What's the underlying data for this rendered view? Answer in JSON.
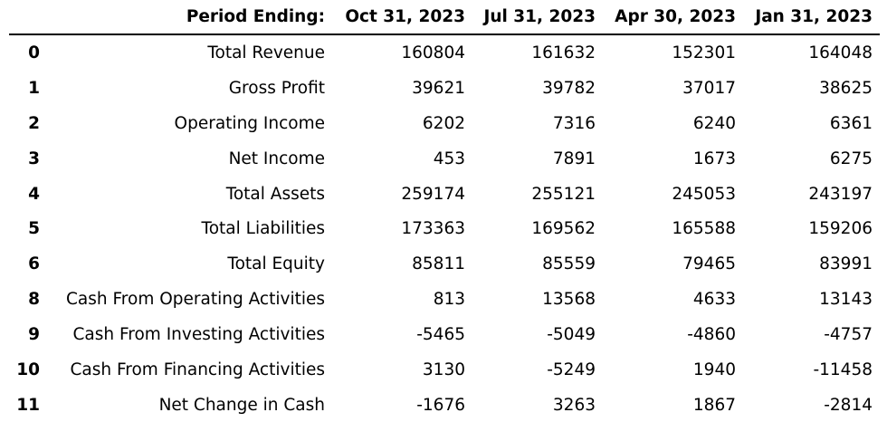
{
  "chart_data": {
    "type": "table",
    "columns": [
      "",
      "Period Ending:",
      "Oct 31, 2023",
      "Jul 31, 2023",
      "Apr 30, 2023",
      "Jan 31, 2023"
    ],
    "rows": [
      [
        "0",
        "Total Revenue",
        "160804",
        "161632",
        "152301",
        "164048"
      ],
      [
        "1",
        "Gross Profit",
        "39621",
        "39782",
        "37017",
        "38625"
      ],
      [
        "2",
        "Operating Income",
        "6202",
        "7316",
        "6240",
        "6361"
      ],
      [
        "3",
        "Net Income",
        "453",
        "7891",
        "1673",
        "6275"
      ],
      [
        "4",
        "Total Assets",
        "259174",
        "255121",
        "245053",
        "243197"
      ],
      [
        "5",
        "Total Liabilities",
        "173363",
        "169562",
        "165588",
        "159206"
      ],
      [
        "6",
        "Total Equity",
        "85811",
        "85559",
        "79465",
        "83991"
      ],
      [
        "8",
        "Cash From Operating Activities",
        "813",
        "13568",
        "4633",
        "13143"
      ],
      [
        "9",
        "Cash From Investing Activities",
        "-5465",
        "-5049",
        "-4860",
        "-4757"
      ],
      [
        "10",
        "Cash From Financing Activities",
        "3130",
        "-5249",
        "1940",
        "-11458"
      ],
      [
        "11",
        "Net Change in Cash",
        "-1676",
        "3263",
        "1867",
        "-2814"
      ]
    ]
  }
}
